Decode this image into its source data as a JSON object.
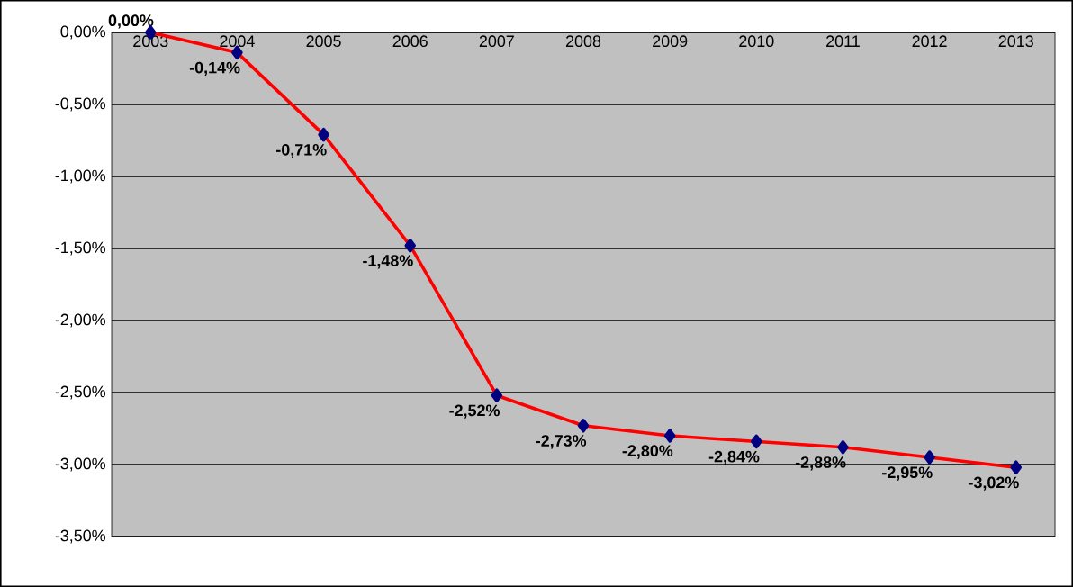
{
  "chart_data": {
    "type": "line",
    "categories": [
      "2003",
      "2004",
      "2005",
      "2006",
      "2007",
      "2008",
      "2009",
      "2010",
      "2011",
      "2012",
      "2013"
    ],
    "series": [
      {
        "color": "#ff0000",
        "values": [
          0,
          -0.14,
          -0.71,
          -1.48,
          -2.52,
          -2.73,
          -2.8,
          -2.84,
          -2.88,
          -2.95,
          -3.02
        ],
        "value_labels": [
          "0,00%",
          "-0,14%",
          "-0,71%",
          "-1,48%",
          "-2,52%",
          "-2,73%",
          "-2,80%",
          "-2,84%",
          "-2,88%",
          "-2,95%",
          "-3,02%"
        ]
      }
    ],
    "ylim": [
      -3.5,
      0
    ],
    "yticks": [
      {
        "value": 0,
        "label": "0,00%"
      },
      {
        "value": -0.5,
        "label": "-0,50%"
      },
      {
        "value": -1,
        "label": "-1,00%"
      },
      {
        "value": -1.5,
        "label": "-1,50%"
      },
      {
        "value": -2,
        "label": "-2,00%"
      },
      {
        "value": -2.5,
        "label": "-2,50%"
      },
      {
        "value": -3,
        "label": "-3,00%"
      },
      {
        "value": -3.5,
        "label": "-3,50%"
      }
    ],
    "grid": "y",
    "marker": "diamond",
    "line_style": "solid"
  }
}
